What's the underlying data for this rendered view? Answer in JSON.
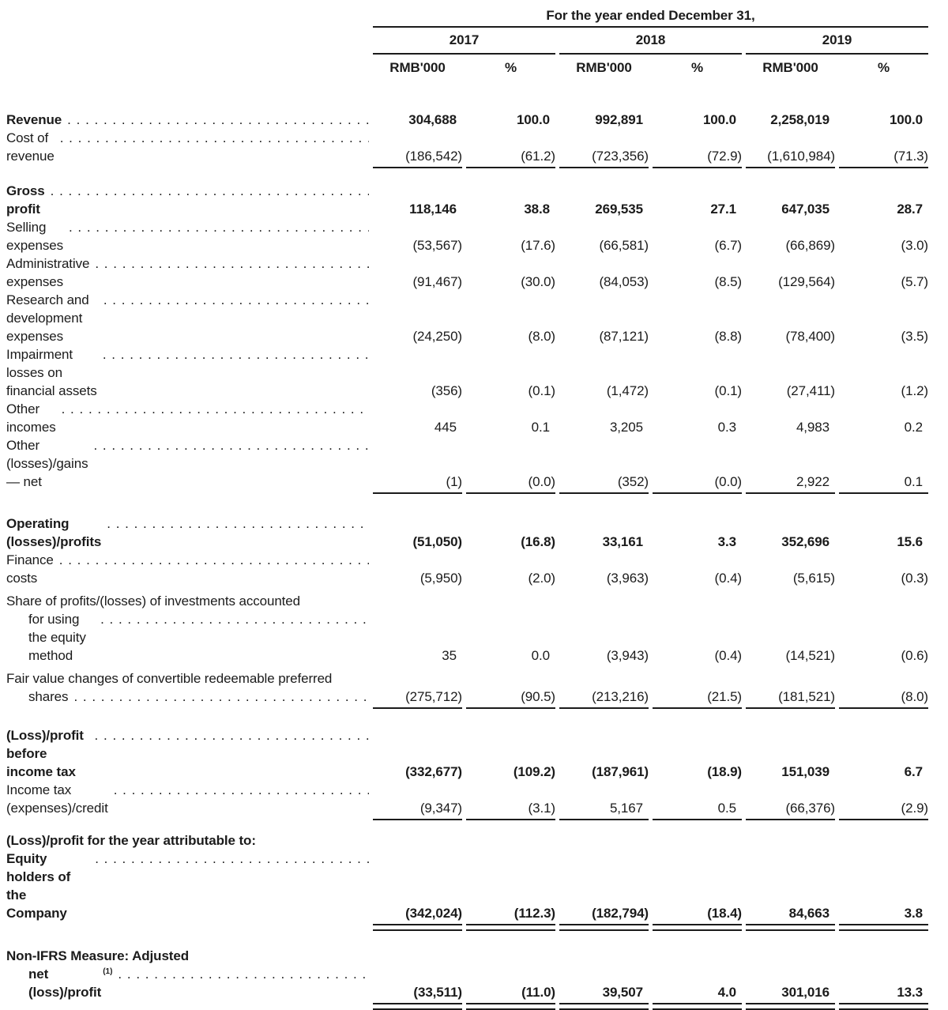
{
  "header": {
    "title": "For the year ended December 31,",
    "years": [
      "2017",
      "2018",
      "2019"
    ],
    "subcolumns": [
      "RMB'000",
      "%",
      "RMB'000",
      "%",
      "RMB'000",
      "%"
    ]
  },
  "table": {
    "unit_note": "RMB'000",
    "rows": [
      {
        "type": "row",
        "bold": true,
        "leader": true,
        "label": "Revenue",
        "values": [
          "304,688",
          "100.0",
          "992,891",
          "100.0",
          "2,258,019",
          "100.0"
        ]
      },
      {
        "type": "row",
        "bold": false,
        "leader": true,
        "label": "Cost of revenue",
        "values": [
          "(186,542)",
          "(61.2)",
          "(723,356)",
          "(72.9)",
          "(1,610,984)",
          "(71.3)"
        ]
      },
      {
        "type": "rule",
        "style": "single"
      },
      {
        "type": "gap",
        "height": 17
      },
      {
        "type": "row",
        "bold": true,
        "leader": true,
        "label": "Gross profit",
        "values": [
          "118,146",
          "38.8",
          "269,535",
          "27.1",
          "647,035",
          "28.7"
        ]
      },
      {
        "type": "row",
        "bold": false,
        "leader": true,
        "label": "Selling expenses",
        "values": [
          "(53,567)",
          "(17.6)",
          "(66,581)",
          "(6.7)",
          "(66,869)",
          "(3.0)"
        ]
      },
      {
        "type": "row",
        "bold": false,
        "leader": true,
        "label": "Administrative expenses",
        "values": [
          "(91,467)",
          "(30.0)",
          "(84,053)",
          "(8.5)",
          "(129,564)",
          "(5.7)"
        ]
      },
      {
        "type": "row",
        "bold": false,
        "leader": true,
        "label": "Research and development expenses",
        "values": [
          "(24,250)",
          "(8.0)",
          "(87,121)",
          "(8.8)",
          "(78,400)",
          "(3.5)"
        ]
      },
      {
        "type": "row",
        "bold": false,
        "leader": true,
        "label": "Impairment losses on financial assets",
        "values": [
          "(356)",
          "(0.1)",
          "(1,472)",
          "(0.1)",
          "(27,411)",
          "(1.2)"
        ]
      },
      {
        "type": "row",
        "bold": false,
        "leader": true,
        "label": "Other incomes",
        "values": [
          "445",
          "0.1",
          "3,205",
          "0.3",
          "4,983",
          "0.2"
        ]
      },
      {
        "type": "row",
        "bold": false,
        "leader": true,
        "label": "Other (losses)/gains — net",
        "values": [
          "(1)",
          "(0.0)",
          "(352)",
          "(0.0)",
          "2,922",
          "0.1"
        ]
      },
      {
        "type": "rule",
        "style": "single"
      },
      {
        "type": "gap",
        "height": 26
      },
      {
        "type": "row",
        "bold": true,
        "leader": true,
        "label": "Operating (losses)/profits",
        "values": [
          "(51,050)",
          "(16.8)",
          "33,161",
          "3.3",
          "352,696",
          "15.6"
        ]
      },
      {
        "type": "row",
        "bold": false,
        "leader": true,
        "label": "Finance costs",
        "values": [
          "(5,950)",
          "(2.0)",
          "(3,963)",
          "(0.4)",
          "(5,615)",
          "(0.3)"
        ]
      },
      {
        "type": "row",
        "bold": false,
        "leader": true,
        "label": "Share of profits/(losses) of investments accounted",
        "label2": "for using the equity method",
        "values": [
          "35",
          "0.0",
          "(3,943)",
          "(0.4)",
          "(14,521)",
          "(0.6)"
        ]
      },
      {
        "type": "row",
        "bold": false,
        "leader": true,
        "label": "Fair value changes of convertible redeemable preferred",
        "label2": "shares",
        "values": [
          "(275,712)",
          "(90.5)",
          "(213,216)",
          "(21.5)",
          "(181,521)",
          "(8.0)"
        ]
      },
      {
        "type": "rule",
        "style": "single"
      },
      {
        "type": "gap",
        "height": 22
      },
      {
        "type": "row",
        "bold": true,
        "leader": true,
        "label": "(Loss)/profit before income tax",
        "values": [
          "(332,677)",
          "(109.2)",
          "(187,961)",
          "(18.9)",
          "151,039",
          "6.7"
        ]
      },
      {
        "type": "row",
        "bold": false,
        "leader": true,
        "label": "Income tax (expenses)/credit",
        "values": [
          "(9,347)",
          "(3.1)",
          "5,167",
          "0.5",
          "(66,376)",
          "(2.9)"
        ]
      },
      {
        "type": "rule",
        "style": "single"
      },
      {
        "type": "gap",
        "height": 14
      },
      {
        "type": "row",
        "bold": true,
        "leader": false,
        "label": "(Loss)/profit for the year attributable to:",
        "values": [
          "",
          "",
          "",
          "",
          "",
          ""
        ]
      },
      {
        "type": "row",
        "bold": true,
        "leader": true,
        "label": "Equity holders of the Company",
        "values": [
          "(342,024)",
          "(112.3)",
          "(182,794)",
          "(18.4)",
          "84,663",
          "3.8"
        ]
      },
      {
        "type": "rule",
        "style": "double"
      },
      {
        "type": "gap",
        "height": 14
      },
      {
        "type": "row",
        "bold": true,
        "leader": true,
        "label": "Non-IFRS Measure: Adjusted",
        "label2": "net (loss)/profit",
        "sup": "(1)",
        "values": [
          "(33,511)",
          "(11.0)",
          "39,507",
          "4.0",
          "301,016",
          "13.3"
        ]
      },
      {
        "type": "rule",
        "style": "double"
      }
    ]
  }
}
